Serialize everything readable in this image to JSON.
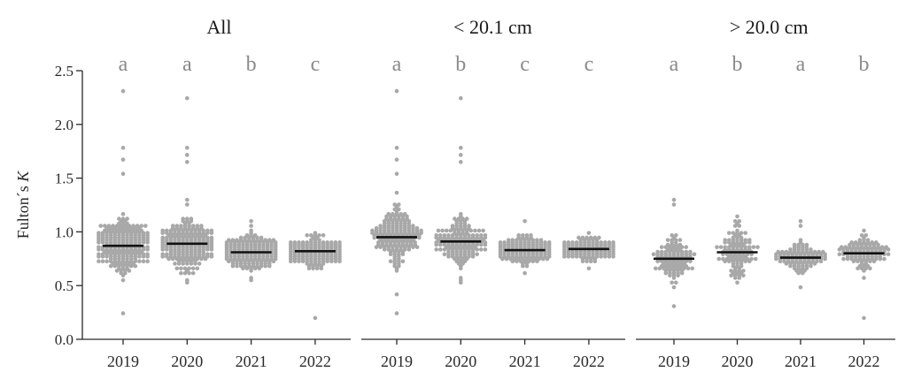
{
  "chart_data": {
    "type": "scatter",
    "subtype": "beeswarm",
    "ylabel_prefix": "Fulton´s ",
    "ylabel_var": "K",
    "ylim": [
      0,
      2.5
    ],
    "yticks": [
      "0.0",
      "0.5",
      "1.0",
      "1.5",
      "2.0",
      "2.5"
    ],
    "ytick_values": [
      0,
      0.5,
      1.0,
      1.5,
      2.0,
      2.5
    ],
    "categories": [
      "2019",
      "2020",
      "2021",
      "2022"
    ],
    "marker_color": "#a8a8a8",
    "median_color": "#111111",
    "panels": [
      {
        "title": "All",
        "letters": [
          "a",
          "a",
          "b",
          "c"
        ],
        "groups": [
          {
            "year": "2019",
            "median": 0.87,
            "spread": 0.12,
            "min": 0.25,
            "max": 2.3,
            "highs": [
              2.3,
              1.78,
              1.68,
              1.55
            ]
          },
          {
            "year": "2020",
            "median": 0.89,
            "spread": 0.11,
            "min": 0.52,
            "max": 2.25,
            "highs": [
              2.25,
              1.78,
              1.72,
              1.65
            ]
          },
          {
            "year": "2021",
            "median": 0.81,
            "spread": 0.07,
            "min": 0.55,
            "max": 1.1,
            "highs": [
              1.1,
              1.05
            ]
          },
          {
            "year": "2022",
            "median": 0.82,
            "spread": 0.06,
            "min": 0.2,
            "max": 1.0,
            "highs": [
              1.0
            ]
          }
        ]
      },
      {
        "title": "< 20.1 cm",
        "letters": [
          "a",
          "b",
          "c",
          "c"
        ],
        "groups": [
          {
            "year": "2019",
            "median": 0.95,
            "spread": 0.13,
            "min": 0.25,
            "max": 2.3,
            "highs": [
              2.3,
              1.78,
              1.68,
              1.55
            ]
          },
          {
            "year": "2020",
            "median": 0.91,
            "spread": 0.12,
            "min": 0.52,
            "max": 2.25,
            "highs": [
              2.25,
              1.78,
              1.72,
              1.65
            ]
          },
          {
            "year": "2021",
            "median": 0.83,
            "spread": 0.06,
            "min": 0.62,
            "max": 1.1,
            "highs": [
              1.1
            ]
          },
          {
            "year": "2022",
            "median": 0.84,
            "spread": 0.05,
            "min": 0.65,
            "max": 1.0,
            "highs": [
              1.0
            ]
          }
        ]
      },
      {
        "title": "> 20.0 cm",
        "letters": [
          "a",
          "b",
          "a",
          "b"
        ],
        "groups": [
          {
            "year": "2019",
            "median": 0.75,
            "spread": 0.1,
            "min": 0.3,
            "max": 1.3,
            "highs": [
              1.3,
              1.25
            ]
          },
          {
            "year": "2020",
            "median": 0.81,
            "spread": 0.11,
            "min": 0.52,
            "max": 1.15,
            "highs": [
              1.15,
              1.1
            ]
          },
          {
            "year": "2021",
            "median": 0.76,
            "spread": 0.07,
            "min": 0.48,
            "max": 1.1,
            "highs": [
              1.1,
              1.05
            ]
          },
          {
            "year": "2022",
            "median": 0.8,
            "spread": 0.07,
            "min": 0.2,
            "max": 1.02,
            "highs": [
              1.02
            ]
          }
        ]
      }
    ]
  }
}
